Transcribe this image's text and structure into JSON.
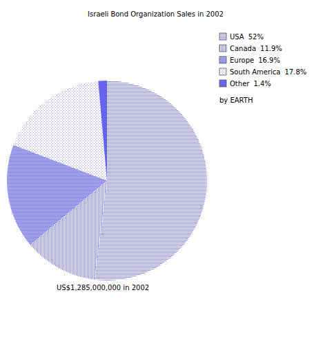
{
  "chart_data": {
    "type": "pie",
    "title": "Israeli Bond Organization Sales in 2002",
    "categories": [
      "USA",
      "Canada",
      "Europe",
      "South America",
      "Other"
    ],
    "values": [
      52,
      11.9,
      16.9,
      17.8,
      1.4
    ],
    "value_labels": [
      "52%",
      "11.9%",
      "16.9%",
      "17.8%",
      "1.4%"
    ],
    "colors": [
      "#8c8cf0",
      "#8c8cf0",
      "#7878ee",
      "#9a9af2",
      "#6464ec"
    ],
    "legend": "top-right",
    "annotations": [
      "by EARTH",
      "US$1,285,000,000 in 2002"
    ]
  }
}
